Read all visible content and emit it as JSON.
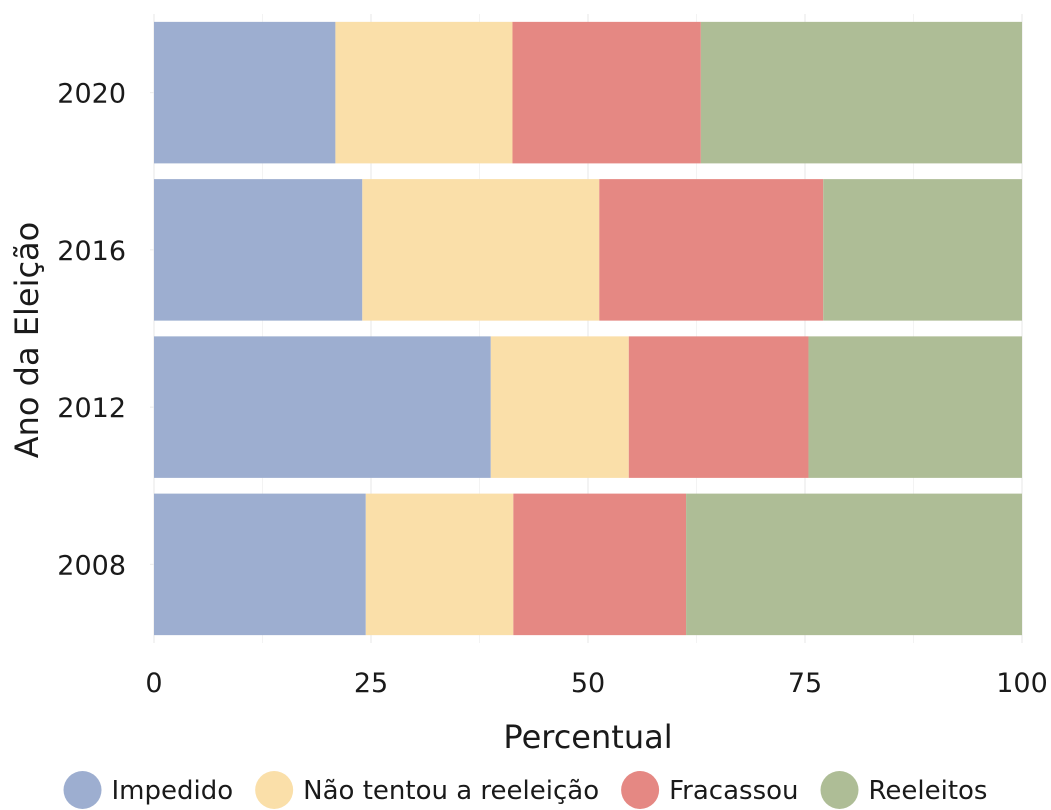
{
  "chart_data": {
    "type": "bar",
    "orientation": "horizontal",
    "stacked": true,
    "title": "",
    "xlabel": "Percentual",
    "ylabel": "Ano da Eleição",
    "xlim": [
      0,
      100
    ],
    "x_ticks": [
      0,
      25,
      50,
      75,
      100
    ],
    "grid": true,
    "legend_position": "bottom",
    "categories": [
      "2008",
      "2012",
      "2016",
      "2020"
    ],
    "series": [
      {
        "name": "Impedido",
        "color": "#9daed0",
        "values": [
          24.4,
          38.8,
          24.0,
          20.9
        ]
      },
      {
        "name": "Não tentou a reeleição",
        "color": "#fadfa9",
        "values": [
          17.0,
          15.9,
          27.3,
          20.4
        ]
      },
      {
        "name": "Fracassou",
        "color": "#e58883",
        "values": [
          19.9,
          20.7,
          25.8,
          21.7
        ]
      },
      {
        "name": "Reeleitos",
        "color": "#aebd96",
        "values": [
          38.7,
          24.6,
          22.9,
          37.0
        ]
      }
    ]
  }
}
